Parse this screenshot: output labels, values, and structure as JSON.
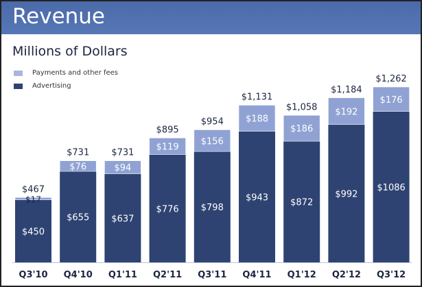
{
  "header": {
    "title": "Revenue"
  },
  "chart_data": {
    "type": "bar",
    "stacked": true,
    "title": "Revenue",
    "subtitle": "Millions of Dollars",
    "categories": [
      "Q3'10",
      "Q4'10",
      "Q1'11",
      "Q2'11",
      "Q3'11",
      "Q4'11",
      "Q1'12",
      "Q2'12",
      "Q3'12"
    ],
    "series": [
      {
        "name": "Advertising",
        "color": "#2e4372",
        "values": [
          450,
          655,
          637,
          776,
          798,
          943,
          872,
          992,
          1086
        ]
      },
      {
        "name": "Payments and other fees",
        "color": "#8fa2d3",
        "values": [
          17,
          76,
          94,
          119,
          156,
          188,
          186,
          192,
          176
        ]
      }
    ],
    "totals": [
      467,
      731,
      731,
      895,
      954,
      1131,
      1058,
      1184,
      1262
    ],
    "value_prefix": "$",
    "legend": [
      "Payments and other fees",
      "Advertising"
    ],
    "legend_position": "top-left",
    "ylim": [
      0,
      1262
    ],
    "grid": false
  }
}
